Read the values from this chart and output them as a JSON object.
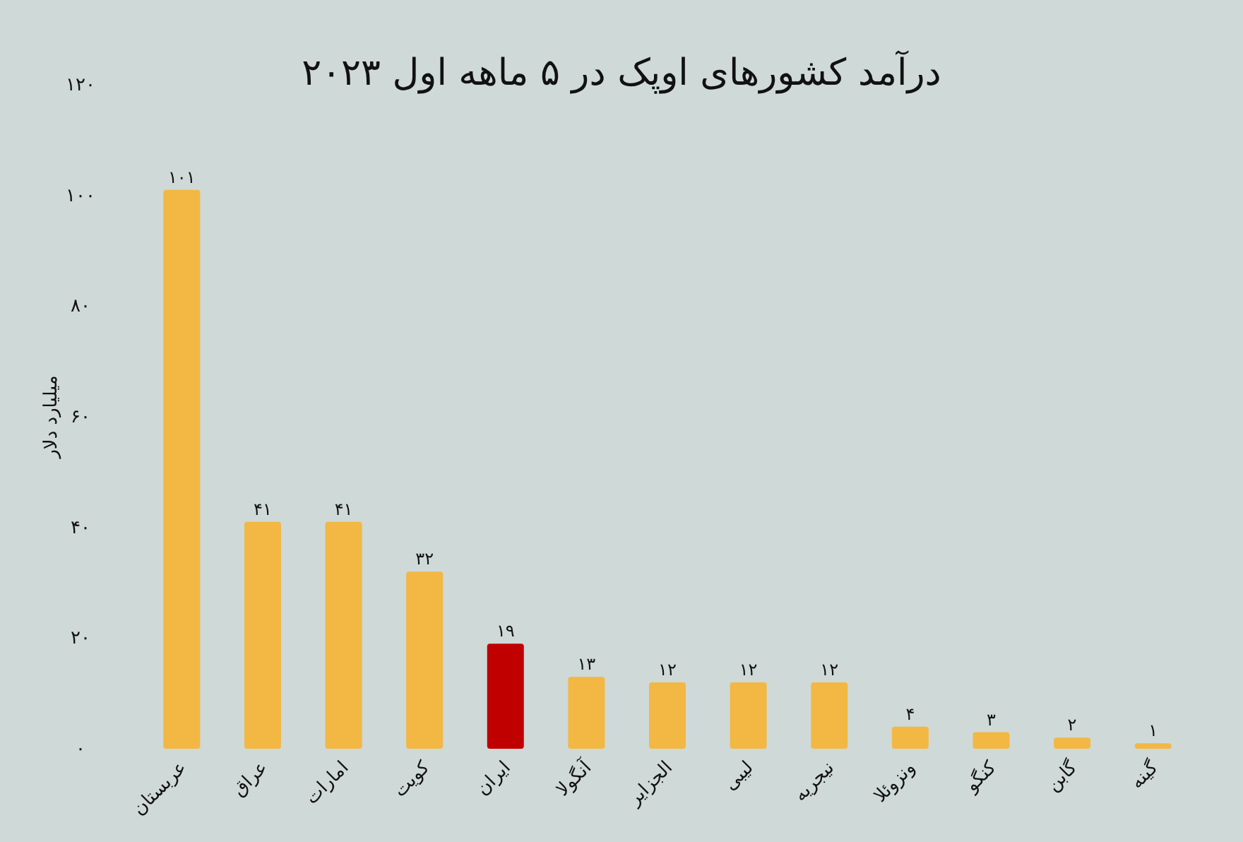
{
  "chart_data": {
    "type": "bar",
    "title": "درآمد کشورهای اوپک در ۵ ماهه اول ۲۰۲۳",
    "ylabel": "میلیارد دلار",
    "categories": [
      "عربستان",
      "عراق",
      "امارات",
      "کویت",
      "ایران",
      "آنگولا",
      "الجزایر",
      "لیبی",
      "نیجریه",
      "ونزوئلا",
      "کنگو",
      "گابن",
      "گینه"
    ],
    "values": [
      101,
      41,
      41,
      32,
      19,
      13,
      12,
      12,
      12,
      4,
      3,
      2,
      1
    ],
    "value_labels": [
      "۱۰۱",
      "۴۱",
      "۴۱",
      "۳۲",
      "۱۹",
      "۱۳",
      "۱۲",
      "۱۲",
      "۱۲",
      "۴",
      "۳",
      "۲",
      "۱"
    ],
    "colors": [
      "#f2b843",
      "#f2b843",
      "#f2b843",
      "#f2b843",
      "#c00000",
      "#f2b843",
      "#f2b843",
      "#f2b843",
      "#f2b843",
      "#f2b843",
      "#f2b843",
      "#f2b843",
      "#f2b843"
    ],
    "ylim": [
      0,
      120
    ],
    "yticks": [
      {
        "value": 0,
        "label": "۰"
      },
      {
        "value": 20,
        "label": "۲۰"
      },
      {
        "value": 40,
        "label": "۴۰"
      },
      {
        "value": 60,
        "label": "۶۰"
      },
      {
        "value": 80,
        "label": "۸۰"
      },
      {
        "value": 100,
        "label": "۱۰۰"
      },
      {
        "value": 120,
        "label": "۱۲۰"
      }
    ],
    "grid": false
  }
}
